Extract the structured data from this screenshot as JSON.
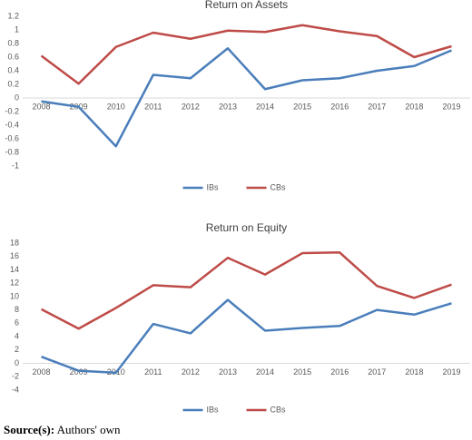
{
  "chart_data": [
    {
      "type": "line",
      "title": "Return on  Assets",
      "categories": [
        "2008",
        "2009",
        "2010",
        "2011",
        "2012",
        "2013",
        "2014",
        "2015",
        "2016",
        "2017",
        "2018",
        "2019"
      ],
      "series": [
        {
          "name": "IBs",
          "color": "#4a7ebb",
          "values": [
            -0.05,
            -0.13,
            -0.71,
            0.34,
            0.29,
            0.73,
            0.13,
            0.26,
            0.29,
            0.4,
            0.47,
            0.7
          ]
        },
        {
          "name": "CBs",
          "color": "#be4b48",
          "values": [
            0.62,
            0.21,
            0.75,
            0.96,
            0.87,
            0.99,
            0.97,
            1.07,
            0.98,
            0.91,
            0.6,
            0.76
          ]
        }
      ],
      "ylim": [
        -1,
        1.2
      ],
      "yticks": [
        -1,
        -0.8,
        -0.6,
        -0.4,
        -0.2,
        0,
        0.2,
        0.4,
        0.6,
        0.8,
        1,
        1.2
      ],
      "grid": false,
      "legend": "bottom"
    },
    {
      "type": "line",
      "title": "Return on Equity",
      "categories": [
        "2008",
        "2009",
        "2010",
        "2011",
        "2012",
        "2013",
        "2014",
        "2015",
        "2016",
        "2017",
        "2018",
        "2019"
      ],
      "series": [
        {
          "name": "IBs",
          "color": "#4a7ebb",
          "values": [
            1,
            -1.1,
            -1.4,
            5.9,
            4.5,
            9.5,
            4.9,
            5.3,
            5.6,
            8,
            7.3,
            9
          ]
        },
        {
          "name": "CBs",
          "color": "#be4b48",
          "values": [
            8.1,
            5.2,
            8.3,
            11.7,
            11.4,
            15.8,
            13.3,
            16.5,
            16.6,
            11.6,
            9.8,
            11.8
          ]
        }
      ],
      "ylim": [
        -4,
        18
      ],
      "yticks": [
        -4,
        -2,
        0,
        2,
        4,
        6,
        8,
        10,
        12,
        14,
        16,
        18
      ],
      "grid": false,
      "legend": "bottom"
    }
  ],
  "source": {
    "label": "Source(s):",
    "text": "Authors' own"
  }
}
